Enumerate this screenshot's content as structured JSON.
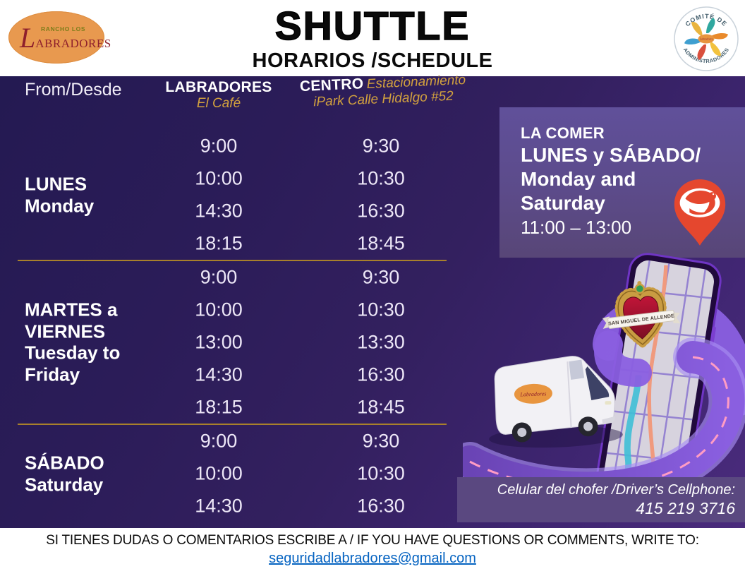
{
  "header": {
    "logo": {
      "top": "RANCHO LOS",
      "name_initial": "L",
      "name_rest": "ABRADORES"
    },
    "title": "SHUTTLE",
    "subtitle": "HORARIOS /SCHEDULE",
    "badge": {
      "arc_top": "COMITÉ DE",
      "arc_bottom": "ADMINISTRADORES",
      "center": "Labradores"
    }
  },
  "schedule": {
    "from_label": "From/Desde",
    "columns": [
      {
        "name": "LABRADORES",
        "sub1": "El Café"
      },
      {
        "name": "CENTRO",
        "sub1": "Estacionamiento",
        "sub2": "iPark Calle Hidalgo #52"
      }
    ],
    "sections": [
      {
        "day_lines": [
          "LUNES",
          "Monday"
        ],
        "rows": [
          [
            "9:00",
            "9:30"
          ],
          [
            "10:00",
            "10:30"
          ],
          [
            "14:30",
            "16:30"
          ],
          [
            "18:15",
            "18:45"
          ]
        ]
      },
      {
        "day_lines": [
          "MARTES a",
          "VIERNES",
          "Tuesday  to",
          "Friday"
        ],
        "rows": [
          [
            "9:00",
            "9:30"
          ],
          [
            "10:00",
            "10:30"
          ],
          [
            "13:00",
            "13:30"
          ],
          [
            "14:30",
            "16:30"
          ],
          [
            "18:15",
            "18:45"
          ]
        ]
      },
      {
        "day_lines": [
          "SÁBADO",
          "Saturday"
        ],
        "rows": [
          [
            "9:00",
            "9:30"
          ],
          [
            "10:00",
            "10:30"
          ],
          [
            "14:30",
            "16:30"
          ]
        ]
      }
    ]
  },
  "la_comer": {
    "title": "LA COMER",
    "lines": [
      "LUNES y SÁBADO/",
      "Monday and",
      "Saturday"
    ],
    "hours": "11:00 – 13:00"
  },
  "driver": {
    "label": "Celular del chofer /Driver’s Cellphone:",
    "phone": "415 219 3716"
  },
  "footer": {
    "message": "SI TIENES DUDAS O COMENTARIOS ESCRIBE A / IF YOU HAVE QUESTIONS OR COMMENTS, WRITE TO:",
    "email": "seguridadlabradores@gmail.com"
  },
  "illustration": {
    "map_pin_label": "SAN MIGUEL DE ALLENDE",
    "van_logo": "Labradores"
  },
  "colors": {
    "background_dark": "#241A52",
    "background_light": "#4A2B7C",
    "gold": "#D2A13E",
    "la_comer_bg": "#5C4B8A",
    "pin_red": "#E5472E",
    "link_blue": "#0563C1",
    "logo_orange": "#E8994F",
    "logo_red": "#8E1F2C"
  }
}
